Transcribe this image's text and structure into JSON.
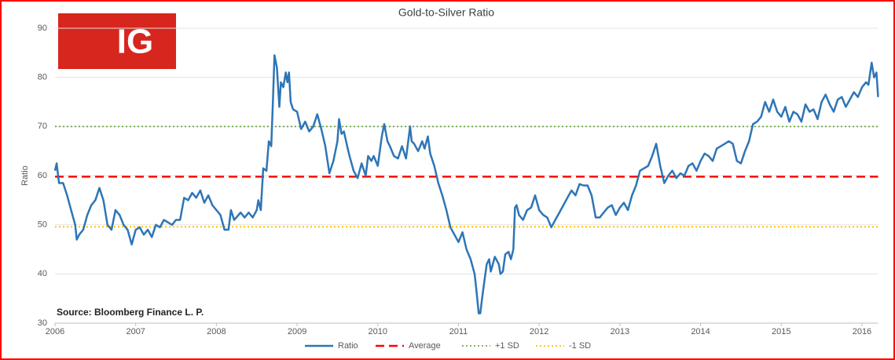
{
  "logo": "IG",
  "chart_data": {
    "type": "line",
    "title": "Gold-to-Silver Ratio",
    "y_label": "Ratio",
    "source": "Source: Bloomberg Finance L. P.",
    "xlim": [
      2006,
      2016.2
    ],
    "xticks": [
      2006,
      2007,
      2008,
      2009,
      2010,
      2011,
      2012,
      2013,
      2014,
      2015,
      2016
    ],
    "ylim": [
      30,
      90
    ],
    "yticks": [
      30,
      40,
      50,
      60,
      70,
      80,
      90
    ],
    "grid": true,
    "series": [
      {
        "name": "Ratio",
        "color": "#2e75b6",
        "x": [
          2006.0,
          2006.02,
          2006.05,
          2006.1,
          2006.15,
          2006.2,
          2006.25,
          2006.27,
          2006.3,
          2006.35,
          2006.4,
          2006.45,
          2006.5,
          2006.55,
          2006.6,
          2006.65,
          2006.7,
          2006.75,
          2006.8,
          2006.85,
          2006.9,
          2006.95,
          2007.0,
          2007.05,
          2007.1,
          2007.15,
          2007.2,
          2007.25,
          2007.3,
          2007.35,
          2007.4,
          2007.45,
          2007.5,
          2007.55,
          2007.6,
          2007.65,
          2007.7,
          2007.75,
          2007.8,
          2007.85,
          2007.9,
          2007.95,
          2008.0,
          2008.05,
          2008.1,
          2008.15,
          2008.18,
          2008.22,
          2008.3,
          2008.35,
          2008.4,
          2008.45,
          2008.5,
          2008.52,
          2008.55,
          2008.58,
          2008.62,
          2008.65,
          2008.68,
          2008.7,
          2008.72,
          2008.75,
          2008.78,
          2008.8,
          2008.83,
          2008.86,
          2008.88,
          2008.9,
          2008.92,
          2008.95,
          2009.0,
          2009.05,
          2009.1,
          2009.15,
          2009.2,
          2009.25,
          2009.3,
          2009.35,
          2009.4,
          2009.45,
          2009.5,
          2009.52,
          2009.55,
          2009.58,
          2009.62,
          2009.65,
          2009.7,
          2009.75,
          2009.8,
          2009.85,
          2009.88,
          2009.92,
          2009.95,
          2010.0,
          2010.05,
          2010.08,
          2010.12,
          2010.15,
          2010.2,
          2010.25,
          2010.3,
          2010.35,
          2010.4,
          2010.42,
          2010.45,
          2010.5,
          2010.55,
          2010.58,
          2010.62,
          2010.65,
          2010.7,
          2010.75,
          2010.8,
          2010.85,
          2010.9,
          2010.95,
          2011.0,
          2011.05,
          2011.1,
          2011.15,
          2011.2,
          2011.22,
          2011.25,
          2011.27,
          2011.3,
          2011.35,
          2011.38,
          2011.4,
          2011.45,
          2011.5,
          2011.52,
          2011.55,
          2011.58,
          2011.62,
          2011.65,
          2011.68,
          2011.7,
          2011.72,
          2011.75,
          2011.8,
          2011.85,
          2011.9,
          2011.95,
          2012.0,
          2012.05,
          2012.1,
          2012.15,
          2012.2,
          2012.25,
          2012.3,
          2012.35,
          2012.4,
          2012.45,
          2012.5,
          2012.55,
          2012.6,
          2012.65,
          2012.7,
          2012.75,
          2012.8,
          2012.85,
          2012.9,
          2012.95,
          2013.0,
          2013.05,
          2013.1,
          2013.15,
          2013.2,
          2013.25,
          2013.3,
          2013.35,
          2013.4,
          2013.45,
          2013.5,
          2013.55,
          2013.6,
          2013.65,
          2013.7,
          2013.75,
          2013.8,
          2013.85,
          2013.9,
          2013.95,
          2014.0,
          2014.05,
          2014.1,
          2014.15,
          2014.2,
          2014.25,
          2014.3,
          2014.35,
          2014.4,
          2014.45,
          2014.5,
          2014.55,
          2014.6,
          2014.65,
          2014.7,
          2014.75,
          2014.8,
          2014.85,
          2014.9,
          2014.95,
          2015.0,
          2015.05,
          2015.1,
          2015.15,
          2015.2,
          2015.25,
          2015.3,
          2015.35,
          2015.4,
          2015.45,
          2015.5,
          2015.55,
          2015.6,
          2015.65,
          2015.7,
          2015.75,
          2015.8,
          2015.85,
          2015.9,
          2015.95,
          2016.0,
          2016.05,
          2016.08,
          2016.12,
          2016.15,
          2016.18,
          2016.2
        ],
        "values": [
          61,
          62.5,
          58.5,
          58.5,
          56,
          53,
          50,
          47,
          48,
          49,
          52,
          54,
          55,
          57.5,
          55,
          50,
          49,
          53,
          52,
          50,
          49,
          46,
          49,
          49.5,
          48,
          49,
          47.5,
          50,
          49.5,
          51,
          50.5,
          50,
          51,
          51,
          55.5,
          55,
          56.5,
          55.5,
          57,
          54.5,
          56,
          54,
          53,
          52,
          49,
          49,
          53,
          51,
          52.5,
          51.5,
          52.5,
          51.5,
          53,
          55,
          53,
          61.5,
          61,
          67,
          66,
          75,
          84.5,
          82,
          74,
          79,
          78,
          81,
          79,
          81,
          75,
          73.5,
          73,
          69.5,
          71,
          69,
          70,
          72.5,
          69.5,
          66,
          60.5,
          63,
          67,
          71.5,
          68.5,
          69,
          66,
          64,
          61,
          59.5,
          62.5,
          60,
          64,
          63,
          64,
          62,
          68,
          70.5,
          67,
          66,
          64,
          63.5,
          66,
          63.5,
          70,
          67,
          66.5,
          65,
          67,
          65.5,
          68,
          64.5,
          62,
          58.5,
          56,
          53,
          49.5,
          48,
          46.5,
          48.5,
          45,
          43,
          40,
          37,
          32,
          32,
          36,
          42,
          43,
          40.5,
          43.5,
          42,
          40,
          40.5,
          44,
          44.5,
          43,
          45,
          53.5,
          54,
          52,
          51,
          53,
          53.5,
          56,
          53,
          52,
          51.5,
          49.5,
          51,
          52.5,
          54,
          55.5,
          57,
          56,
          58.3,
          58,
          58,
          56,
          51.5,
          51.5,
          52.5,
          53.5,
          54,
          52,
          53.5,
          54.5,
          53,
          56,
          58,
          61,
          61.5,
          62,
          64,
          66.5,
          62,
          58.5,
          60,
          61,
          59.5,
          60.5,
          60,
          62,
          62.5,
          61,
          63,
          64.5,
          64,
          63,
          65.5,
          66,
          66.5,
          67,
          66.5,
          63,
          62.5,
          65,
          67,
          70.5,
          71,
          72,
          75,
          73,
          75.5,
          73,
          72,
          74,
          71,
          73,
          72.5,
          71,
          74.5,
          73,
          73.5,
          71.5,
          75,
          76.5,
          74.5,
          73,
          75.5,
          76,
          74,
          75.5,
          77,
          76,
          78,
          79,
          78.5,
          83,
          80,
          81,
          76
        ]
      }
    ],
    "reference_lines": [
      {
        "name": "Average",
        "value": 59.8,
        "color": "#ff0000",
        "style": "dashed"
      },
      {
        "name": "+1 SD",
        "value": 70,
        "color": "#70ad47",
        "style": "dotted"
      },
      {
        "name": "-1 SD",
        "value": 49.6,
        "color": "#ffc000",
        "style": "dotted"
      }
    ]
  }
}
